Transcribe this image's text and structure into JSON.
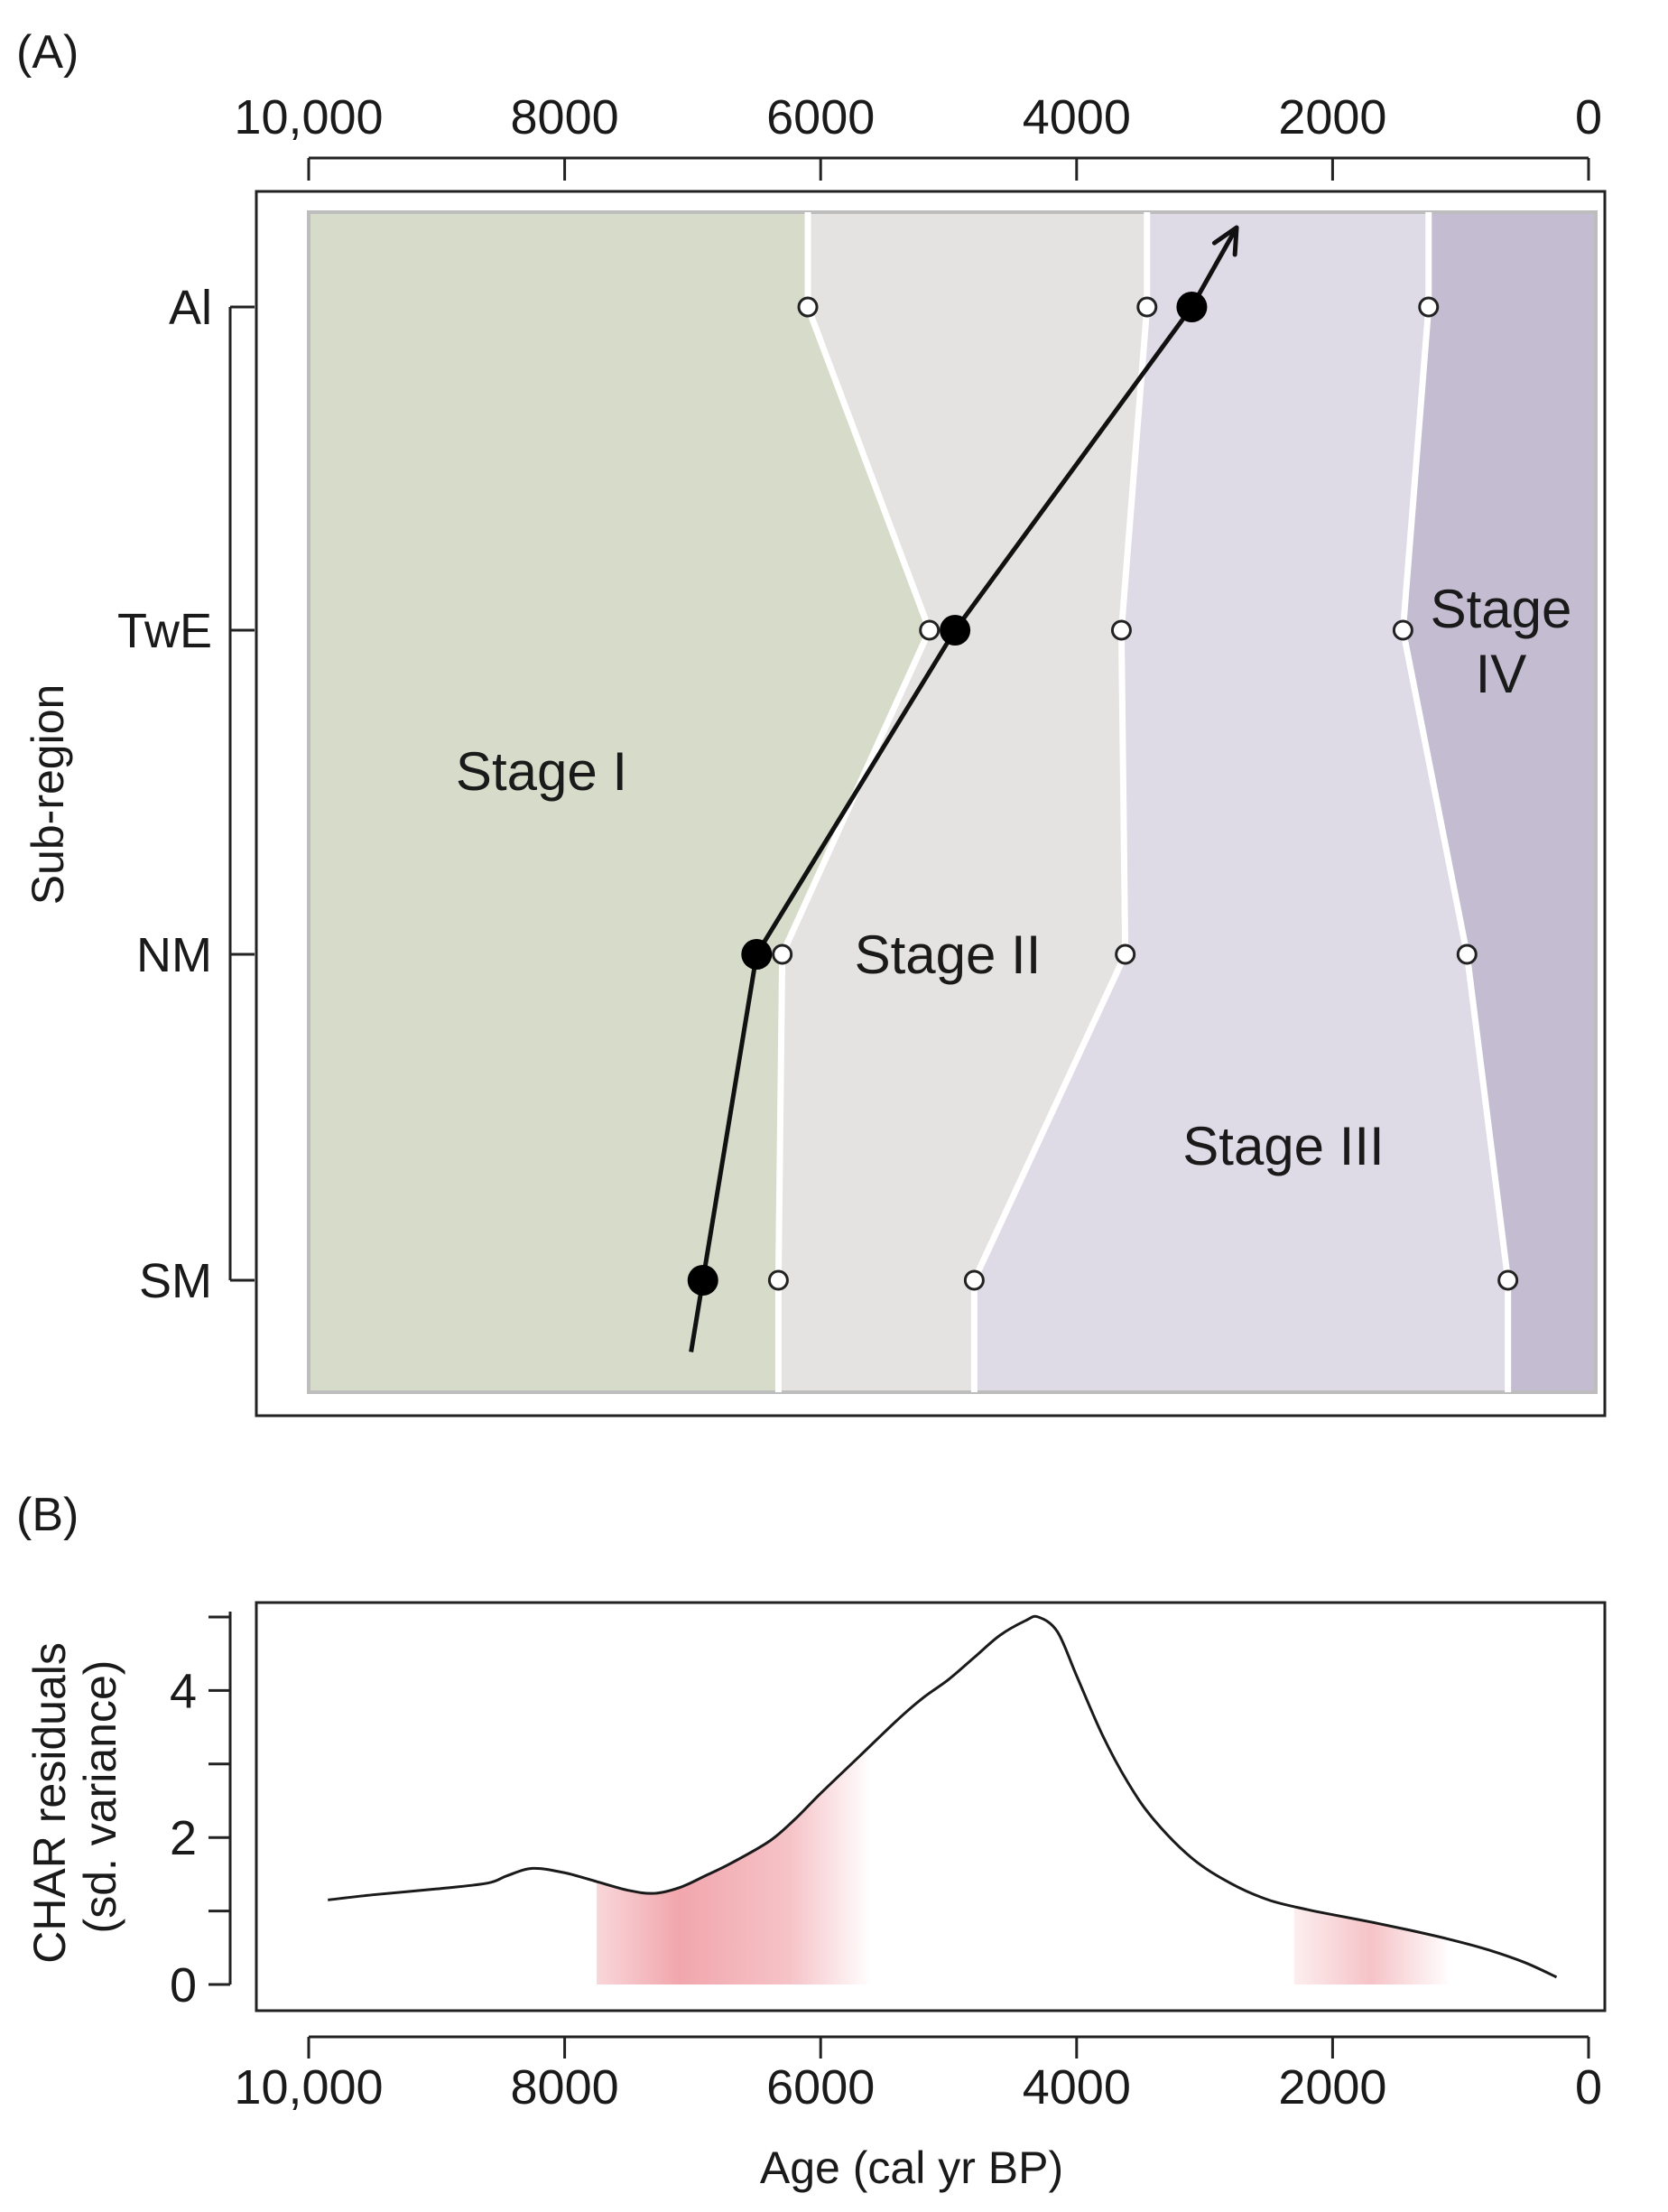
{
  "chart_data": [
    {
      "panel_label": "(A)",
      "type": "scatter",
      "x_axis": {
        "ticks": [
          10000,
          8000,
          6000,
          4000,
          2000,
          0
        ],
        "tick_labels": [
          "10,000",
          "8000",
          "6000",
          "4000",
          "2000",
          "0"
        ],
        "reversed": true,
        "position": "top"
      },
      "y_axis": {
        "label": "Sub-region",
        "categories": [
          "Al",
          "TwE",
          "NM",
          "SM"
        ]
      },
      "stages": [
        {
          "name": "Stage I",
          "label_lines": [
            "Stage I"
          ],
          "color": "#d7dbca"
        },
        {
          "name": "Stage II",
          "label_lines": [
            "Stage II"
          ],
          "color": "#e4e3e1"
        },
        {
          "name": "Stage III",
          "label_lines": [
            "Stage III"
          ],
          "color": "#dedae6"
        },
        {
          "name": "Stage IV",
          "label_lines": [
            "Stage",
            "IV"
          ],
          "color": "#c4bcd0"
        }
      ],
      "stage_boundaries": [
        {
          "between": "Stage I / Stage II",
          "ages": {
            "Al": 6100,
            "TwE": 5150,
            "NM": 6300,
            "SM": 6330
          }
        },
        {
          "between": "Stage II / Stage III",
          "ages": {
            "Al": 3450,
            "TwE": 3650,
            "NM": 3620,
            "SM": 4800
          }
        },
        {
          "between": "Stage III / Stage IV",
          "ages": {
            "Al": 1250,
            "TwE": 1450,
            "NM": 950,
            "SM": 630
          }
        }
      ],
      "transition_series": {
        "name": "",
        "points": [
          {
            "region": "Al",
            "age": 3100
          },
          {
            "region": "TwE",
            "age": 4950
          },
          {
            "region": "NM",
            "age": 6500
          },
          {
            "region": "SM",
            "age": 6920
          }
        ],
        "arrow_toward_age": 2750
      }
    },
    {
      "panel_label": "(B)",
      "type": "line",
      "xlabel": "Age (cal yr BP)",
      "ylabel": [
        "CHAR residuals",
        "(sd. variance)"
      ],
      "x_ticks": [
        10000,
        8000,
        6000,
        4000,
        2000,
        0
      ],
      "x_tick_labels": [
        "10,000",
        "8000",
        "6000",
        "4000",
        "2000",
        "0"
      ],
      "y_ticks": [
        0,
        2,
        4
      ],
      "y_minor_ticks": [
        1,
        3,
        5
      ],
      "xlim": [
        10300,
        -100
      ],
      "ylim": [
        -0.1,
        5.2
      ],
      "series": [
        {
          "name": "",
          "x": [
            9850,
            9500,
            9000,
            8600,
            8450,
            8250,
            8000,
            7750,
            7500,
            7300,
            7100,
            6900,
            6700,
            6400,
            6200,
            6000,
            5700,
            5400,
            5200,
            5000,
            4800,
            4600,
            4400,
            4300,
            4150,
            4000,
            3800,
            3600,
            3400,
            3100,
            2800,
            2500,
            2200,
            2000,
            1700,
            1400,
            1100,
            800,
            500,
            250
          ],
          "y": [
            1.15,
            1.22,
            1.3,
            1.38,
            1.48,
            1.58,
            1.52,
            1.4,
            1.28,
            1.24,
            1.32,
            1.48,
            1.65,
            1.95,
            2.25,
            2.6,
            3.1,
            3.6,
            3.9,
            4.15,
            4.45,
            4.75,
            4.95,
            5.0,
            4.8,
            4.2,
            3.4,
            2.75,
            2.25,
            1.72,
            1.38,
            1.15,
            1.02,
            0.95,
            0.85,
            0.74,
            0.62,
            0.48,
            0.3,
            0.1
          ]
        }
      ],
      "shaded_intervals": [
        {
          "from": 7750,
          "to": 5600,
          "color": "#e8707a"
        },
        {
          "from": 2300,
          "to": 1100,
          "color": "#e8707a"
        }
      ],
      "line_color": "#1a1a1a"
    }
  ]
}
